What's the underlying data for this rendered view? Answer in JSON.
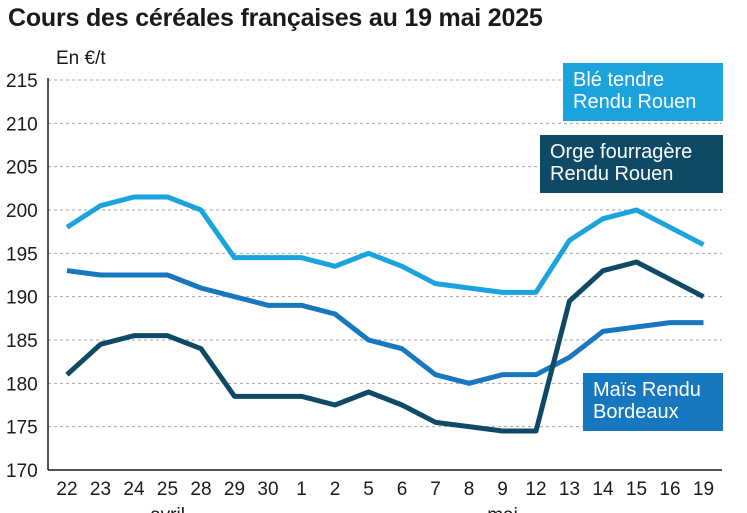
{
  "title": "Cours des céréales françaises au 19 mai 2025",
  "unit": "En €/t",
  "colors": {
    "ble": "#1aa3dc",
    "orge": "#0e4966",
    "mais": "#1778bf",
    "grid": "#a6a6a6",
    "axis": "#1a1a1a"
  },
  "chart_data": {
    "type": "line",
    "title": "Cours des céréales françaises au 19 mai 2025",
    "ylabel": "En €/t",
    "ylim": [
      170,
      215
    ],
    "yticks": [
      170,
      175,
      180,
      185,
      190,
      195,
      200,
      205,
      210,
      215
    ],
    "grid": "horizontal dashed",
    "categories": [
      "22",
      "23",
      "24",
      "25",
      "28",
      "29",
      "30",
      "1",
      "2",
      "5",
      "6",
      "7",
      "8",
      "9",
      "12",
      "13",
      "14",
      "15",
      "16",
      "19"
    ],
    "month_labels": [
      {
        "label": "avril",
        "at_index": 3
      },
      {
        "label": "mai",
        "at_index": 13
      }
    ],
    "series": [
      {
        "name": "Blé tendre Rendu Rouen",
        "lines": [
          "Blé tendre",
          "Rendu Rouen"
        ],
        "color": "#1aa3dc",
        "values": [
          198,
          200.5,
          201.5,
          201.5,
          200,
          194.5,
          194.5,
          194.5,
          193.5,
          195,
          193.5,
          191.5,
          191,
          190.5,
          190.5,
          196.5,
          199,
          200,
          198,
          196
        ]
      },
      {
        "name": "Orge fourragère Rendu Rouen",
        "lines": [
          "Orge fourragère",
          "Rendu Rouen"
        ],
        "color": "#0e4966",
        "values": [
          181,
          184.5,
          185.5,
          185.5,
          184,
          178.5,
          178.5,
          178.5,
          177.5,
          179,
          177.5,
          175.5,
          175,
          174.5,
          174.5,
          189.5,
          193,
          194,
          192,
          190
        ]
      },
      {
        "name": "Maïs Rendu Bordeaux",
        "lines": [
          "Maïs Rendu",
          "Bordeaux"
        ],
        "color": "#1778bf",
        "values": [
          193,
          192.5,
          192.5,
          192.5,
          191,
          190,
          189,
          189,
          188,
          185,
          184,
          181,
          180,
          181,
          181,
          183,
          186,
          186.5,
          187,
          187
        ]
      }
    ],
    "legend_placement": "inline-right"
  }
}
